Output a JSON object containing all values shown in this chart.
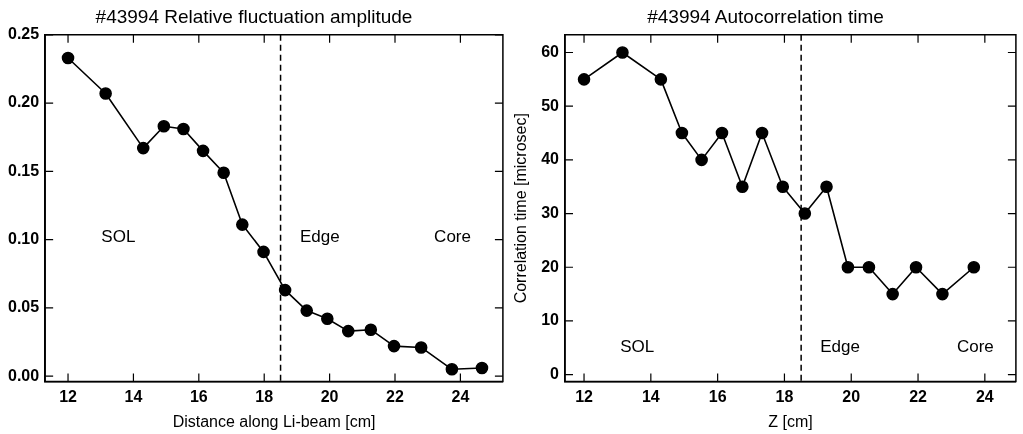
{
  "chart_data": [
    {
      "type": "line",
      "title": "#43994 Relative fluctuation amplitude",
      "xlabel": "Distance along Li-beam [cm]",
      "xlim": [
        11.3,
        25.3
      ],
      "xticks": [
        12,
        14,
        16,
        18,
        20,
        22,
        24
      ],
      "ylim": [
        -0.004,
        0.25
      ],
      "yticks": [
        {
          "value": 0,
          "label": "0.00"
        },
        {
          "value": 0.05,
          "label": "0.05"
        },
        {
          "value": 0.1,
          "label": "0.10"
        },
        {
          "value": 0.15,
          "label": "0.15"
        },
        {
          "value": 0.2,
          "label": "0.20"
        },
        {
          "value": 0.25,
          "label": "0.25"
        }
      ],
      "grid": false,
      "legend": false,
      "marker": "circle",
      "line_style": "solid",
      "series": [
        {
          "color": "#000000",
          "x": [
            12.0,
            13.15,
            14.3,
            14.93,
            15.53,
            16.13,
            16.76,
            17.33,
            17.98,
            18.64,
            19.3,
            19.93,
            20.57,
            21.26,
            21.97,
            22.8,
            23.74,
            24.66
          ],
          "values": [
            0.233,
            0.207,
            0.167,
            0.183,
            0.181,
            0.165,
            0.149,
            0.111,
            0.091,
            0.063,
            0.048,
            0.042,
            0.033,
            0.034,
            0.022,
            0.021,
            0.005,
            0.006
          ]
        }
      ],
      "ref_lines": [
        {
          "axis": "x",
          "value": 18.5,
          "line_style": "dashed",
          "color": "#000000"
        }
      ],
      "annotations": [
        "SOL",
        "Edge",
        "Core"
      ]
    },
    {
      "type": "line",
      "title": "#43994 Autocorrelation time",
      "xlabel": "Z [cm]",
      "ylabel": "Correlation time [microsec]",
      "xlim": [
        11.43,
        24.93
      ],
      "xticks": [
        12,
        14,
        16,
        18,
        20,
        22,
        24
      ],
      "ylim": [
        -1.3,
        63.3
      ],
      "yticks": [
        0,
        10,
        20,
        30,
        40,
        50,
        60
      ],
      "grid": false,
      "legend": false,
      "marker": "circle",
      "line_style": "solid",
      "series": [
        {
          "color": "#000000",
          "x": [
            12.0,
            13.15,
            14.3,
            14.93,
            15.52,
            16.13,
            16.74,
            17.33,
            17.95,
            18.61,
            19.26,
            19.9,
            20.53,
            21.24,
            21.94,
            22.73,
            23.67
          ],
          "values": [
            55,
            60,
            55,
            45,
            40,
            45,
            35,
            45,
            35,
            30,
            35,
            20,
            20,
            15,
            20,
            15,
            20
          ]
        }
      ],
      "ref_lines": [
        {
          "axis": "x",
          "value": 18.5,
          "line_style": "dashed",
          "color": "#000000"
        }
      ],
      "annotations": [
        "SOL",
        "Edge",
        "Core"
      ]
    }
  ]
}
